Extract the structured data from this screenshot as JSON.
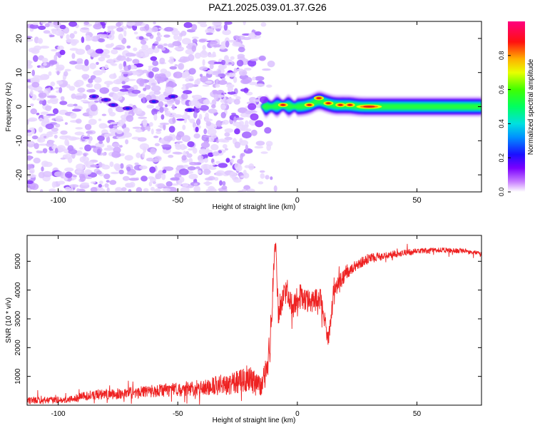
{
  "page": {
    "title": "PAZ1.2025.039.01.37.G26"
  },
  "chart_data": [
    {
      "type": "heatmap",
      "title": "PAZ1.2025.039.01.37.G26",
      "xlabel": "Height of straight line (km)",
      "ylabel": "Frequency (Hz)",
      "xlim": [
        -113,
        77
      ],
      "ylim": [
        -25,
        25
      ],
      "x_ticks": [
        -100,
        -50,
        0,
        50
      ],
      "x_tick_labels": [
        "-100",
        "-50",
        "0",
        "50"
      ],
      "y_ticks": [
        20,
        10,
        0,
        -10,
        -20
      ],
      "y_tick_labels": [
        "20",
        "10",
        "0",
        "-10",
        "-20"
      ],
      "grid": false,
      "colorbar": {
        "label": "Normalized spectral amplitude",
        "range": [
          0,
          1
        ],
        "ticks": [
          0.0,
          0.2,
          0.4,
          0.6,
          0.8
        ],
        "tick_labels": [
          "0.0",
          "0.2",
          "0.4",
          "0.6",
          "0.8"
        ],
        "colormap": "rainbow (white-violet-blue-cyan-green-yellow-red-magenta)"
      },
      "colors": {
        "frame": "#000000",
        "noise": "#b06ff0",
        "band_core": "#e02020",
        "band_edge": "#1a3cff"
      },
      "features": {
        "noise_region_x": [
          -113,
          -15
        ],
        "band_region_x": [
          -15,
          77
        ],
        "band_center_hz": 0,
        "band_halfwidth_hz": 2,
        "hot_spots": [
          {
            "x": -6,
            "y": 0.5
          },
          {
            "x": 5,
            "y": 0.5
          },
          {
            "x": 9,
            "y": 2.5
          },
          {
            "x": 13,
            "y": 1
          },
          {
            "x": 18,
            "y": 0.5
          },
          {
            "x": 22,
            "y": 0.5
          },
          {
            "x": 30,
            "y": 0
          }
        ]
      }
    },
    {
      "type": "line",
      "xlabel": "Height of straight line (km)",
      "ylabel": "SNR (10 * v/v)",
      "xlim": [
        -113,
        77
      ],
      "ylim": [
        0,
        5900
      ],
      "x_ticks": [
        -100,
        -50,
        0,
        50
      ],
      "x_tick_labels": [
        "-100",
        "-50",
        "0",
        "50"
      ],
      "y_ticks": [
        1000,
        2000,
        3000,
        4000,
        5000
      ],
      "y_tick_labels": [
        "1000",
        "2000",
        "3000",
        "4000",
        "5000"
      ],
      "grid": false,
      "color": "#ee2222",
      "x": [
        -113,
        -95,
        -90,
        -80,
        -70,
        -60,
        -50,
        -40,
        -30,
        -25,
        -20,
        -15,
        -13,
        -11,
        -10,
        -9,
        -8,
        -6,
        -4,
        -2,
        0,
        5,
        10,
        12,
        13,
        15,
        20,
        25,
        30,
        40,
        50,
        60,
        70,
        77
      ],
      "y": [
        150,
        200,
        300,
        380,
        420,
        500,
        550,
        620,
        700,
        800,
        900,
        650,
        1200,
        2300,
        4800,
        5800,
        3100,
        3900,
        4000,
        3400,
        3700,
        3600,
        3700,
        2700,
        2200,
        3800,
        4600,
        4900,
        5100,
        5250,
        5350,
        5400,
        5350,
        5250
      ],
      "noise_amplitude": [
        120,
        120,
        150,
        180,
        200,
        220,
        250,
        280,
        350,
        400,
        450,
        350,
        500,
        600,
        400,
        300,
        500,
        450,
        450,
        420,
        400,
        400,
        380,
        350,
        300,
        380,
        250,
        200,
        180,
        120,
        100,
        90,
        90,
        90
      ]
    }
  ]
}
